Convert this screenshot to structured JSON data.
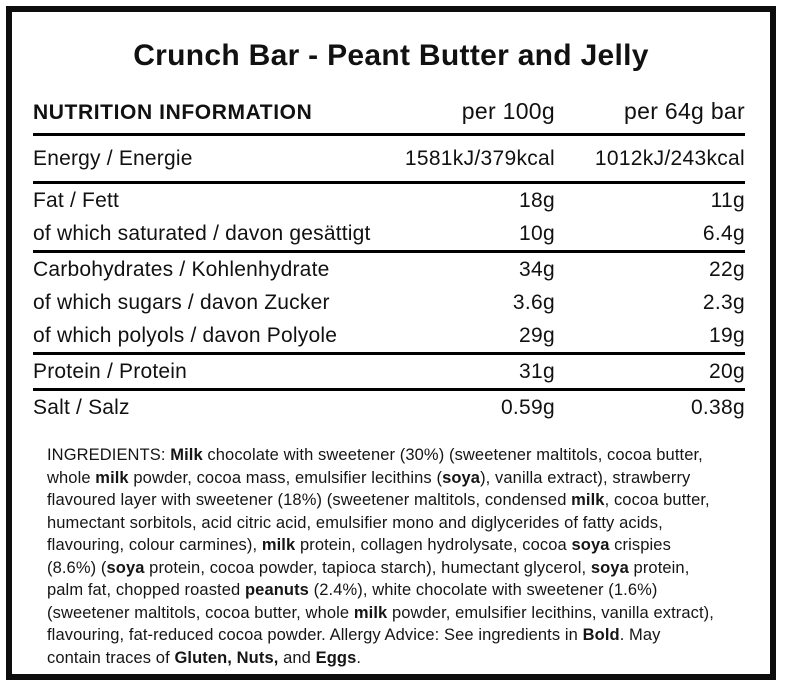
{
  "colors": {
    "text": "#111111",
    "border": "#0d0d0d",
    "divider": "#000000"
  },
  "title": "Crunch Bar - Peant Butter and Jelly",
  "table": {
    "header": {
      "name": "NUTRITION INFORMATION",
      "col1": "per 100g",
      "col2": "per 64g bar"
    },
    "groups": [
      {
        "rows": [
          {
            "label": "Energy / Energie",
            "per100": "1581kJ/379kcal",
            "per64": "1012kJ/243kcal"
          }
        ]
      },
      {
        "rows": [
          {
            "label": "Fat / Fett",
            "per100": "18g",
            "per64": "11g"
          },
          {
            "label": "of which saturated / davon gesättigt",
            "per100": "10g",
            "per64": "6.4g"
          }
        ]
      },
      {
        "rows": [
          {
            "label": "Carbohydrates / Kohlenhydrate",
            "per100": "34g",
            "per64": "22g"
          },
          {
            "label": "of which sugars / davon Zucker",
            "per100": "3.6g",
            "per64": "2.3g"
          },
          {
            "label": "of which polyols / davon Polyole",
            "per100": "29g",
            "per64": "19g"
          }
        ]
      },
      {
        "rows": [
          {
            "label": "Protein / Protein",
            "per100": "31g",
            "per64": "20g"
          }
        ]
      },
      {
        "rows": [
          {
            "label": "Salt / Salz",
            "per100": "0.59g",
            "per64": "0.38g"
          }
        ]
      }
    ]
  },
  "ingredients": {
    "segments": [
      {
        "text": "INGREDIENTS: ",
        "bold": false
      },
      {
        "text": "Milk",
        "bold": true
      },
      {
        "text": " chocolate with sweetener (30%) (sweetener maltitols, cocoa butter, whole ",
        "bold": false
      },
      {
        "text": "milk",
        "bold": true
      },
      {
        "text": " powder, cocoa mass, emulsifier lecithins (",
        "bold": false
      },
      {
        "text": "soya",
        "bold": true
      },
      {
        "text": "), vanilla extract), strawberry flavoured layer with sweetener (18%) (sweetener maltitols, condensed ",
        "bold": false
      },
      {
        "text": "milk",
        "bold": true
      },
      {
        "text": ", cocoa butter, humectant sorbitols, acid citric acid, emulsifier mono and diglycerides of fatty acids, flavouring, colour carmines), ",
        "bold": false
      },
      {
        "text": "milk",
        "bold": true
      },
      {
        "text": " protein, collagen hydrolysate, cocoa ",
        "bold": false
      },
      {
        "text": "soya",
        "bold": true
      },
      {
        "text": " crispies (8.6%) (",
        "bold": false
      },
      {
        "text": "soya",
        "bold": true
      },
      {
        "text": " protein, cocoa powder, tapioca starch), humectant glycerol, ",
        "bold": false
      },
      {
        "text": "soya",
        "bold": true
      },
      {
        "text": " protein, palm fat, chopped roasted ",
        "bold": false
      },
      {
        "text": "peanuts",
        "bold": true
      },
      {
        "text": " (2.4%), white chocolate with sweetener (1.6%) (sweetener maltitols, cocoa butter, whole ",
        "bold": false
      },
      {
        "text": "milk",
        "bold": true
      },
      {
        "text": " powder, emulsifier lecithins, vanilla extract), flavouring, fat-reduced cocoa powder. Allergy Advice: See ingredients in ",
        "bold": false
      },
      {
        "text": "Bold",
        "bold": true
      },
      {
        "text": ". May contain traces of ",
        "bold": false
      },
      {
        "text": "Gluten, Nuts,",
        "bold": true
      },
      {
        "text": " and ",
        "bold": false
      },
      {
        "text": "Eggs",
        "bold": true
      },
      {
        "text": ".",
        "bold": false
      }
    ]
  }
}
